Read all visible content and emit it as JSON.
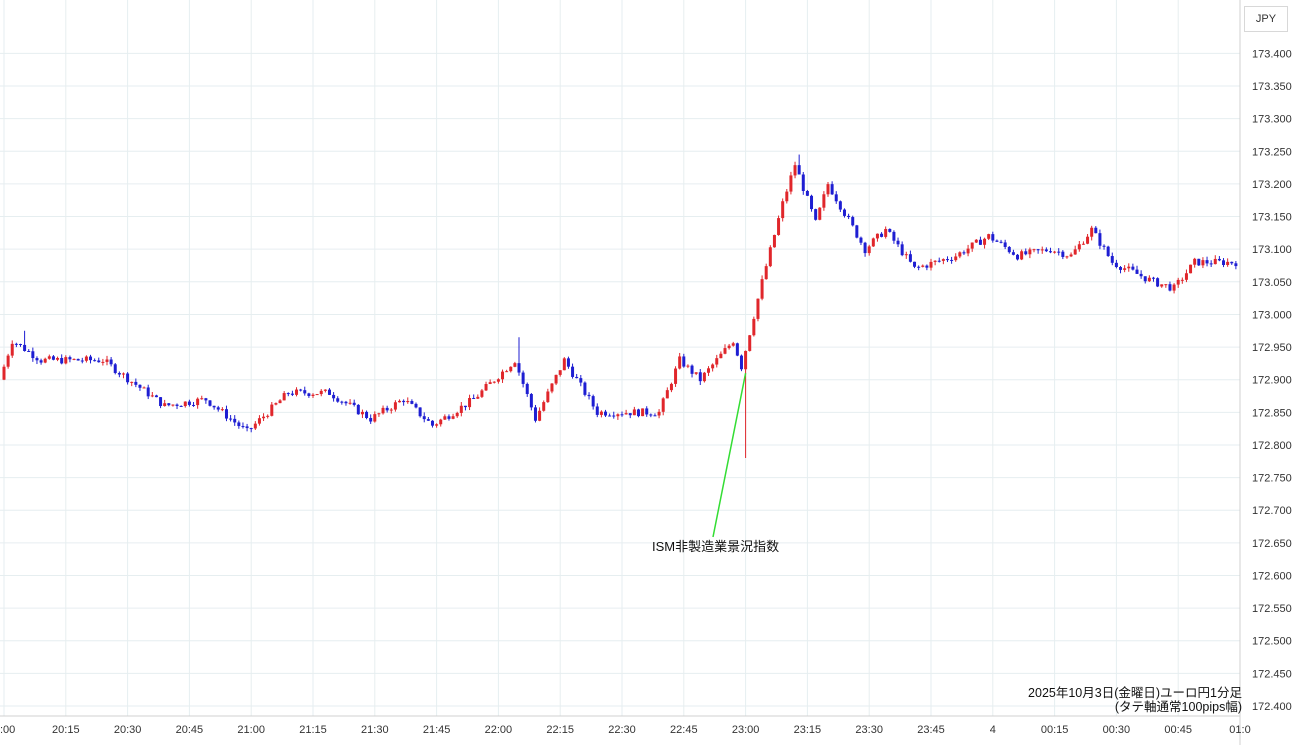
{
  "currency_label": "JPY",
  "caption": {
    "line1": "2025年10月3日(金曜日)ユーロ円1分足",
    "line2": "(タテ軸通常100pips幅)"
  },
  "colors": {
    "up": "#e0262b",
    "down": "#1e1ed2",
    "annotation_line": "#33dd33",
    "grid": "#e6eef0"
  },
  "chart_data": {
    "type": "candlestick",
    "interval": "1 minute",
    "y_axis": {
      "position": "right",
      "range": [
        172.4,
        173.45
      ],
      "ticks": [
        172.4,
        172.45,
        172.5,
        172.55,
        172.6,
        172.65,
        172.7,
        172.75,
        172.8,
        172.85,
        172.9,
        172.95,
        173.0,
        173.05,
        173.1,
        173.15,
        173.2,
        173.25,
        173.3,
        173.35,
        173.4
      ],
      "tick_labels": [
        "172.400",
        "172.450",
        "172.500",
        "172.550",
        "172.600",
        "172.650",
        "172.700",
        "172.750",
        "172.800",
        "172.850",
        "172.900",
        "172.950",
        "173.000",
        "173.050",
        "173.100",
        "173.150",
        "173.200",
        "173.250",
        "173.300",
        "173.350",
        "173.400"
      ]
    },
    "x_axis": {
      "tick_labels": [
        ":00",
        "20:15",
        "20:30",
        "20:45",
        "21:00",
        "21:15",
        "21:30",
        "21:45",
        "22:00",
        "22:15",
        "22:30",
        "22:45",
        "23:00",
        "23:15",
        "23:30",
        "23:45",
        "4",
        "00:15",
        "00:30",
        "00:45",
        "01:0"
      ]
    },
    "grid": true,
    "annotations": [
      {
        "text": "ISM非製造業景況指数",
        "at_time": "23:00",
        "price": 172.91
      }
    ],
    "price_keypoints": [
      {
        "t": "20:00",
        "price": 172.9
      },
      {
        "t": "20:03",
        "price": 172.96
      },
      {
        "t": "20:10",
        "price": 172.93
      },
      {
        "t": "20:25",
        "price": 172.93
      },
      {
        "t": "20:40",
        "price": 172.86
      },
      {
        "t": "20:50",
        "price": 172.87
      },
      {
        "t": "21:00",
        "price": 172.82
      },
      {
        "t": "21:10",
        "price": 172.88
      },
      {
        "t": "21:20",
        "price": 172.88
      },
      {
        "t": "21:30",
        "price": 172.84
      },
      {
        "t": "21:38",
        "price": 172.87
      },
      {
        "t": "21:45",
        "price": 172.83
      },
      {
        "t": "21:55",
        "price": 172.87
      },
      {
        "t": "22:05",
        "price": 172.93
      },
      {
        "t": "22:10",
        "price": 172.84
      },
      {
        "t": "22:17",
        "price": 172.93
      },
      {
        "t": "22:25",
        "price": 172.85
      },
      {
        "t": "22:40",
        "price": 172.85
      },
      {
        "t": "22:45",
        "price": 172.93
      },
      {
        "t": "22:50",
        "price": 172.9
      },
      {
        "t": "22:58",
        "price": 172.96
      },
      {
        "t": "23:00",
        "price": 172.92
      },
      {
        "t": "23:05",
        "price": 173.05
      },
      {
        "t": "23:10",
        "price": 173.17
      },
      {
        "t": "23:13",
        "price": 173.23
      },
      {
        "t": "23:18",
        "price": 173.14
      },
      {
        "t": "23:21",
        "price": 173.2
      },
      {
        "t": "23:30",
        "price": 173.1
      },
      {
        "t": "23:35",
        "price": 173.13
      },
      {
        "t": "23:42",
        "price": 173.07
      },
      {
        "t": "23:52",
        "price": 173.09
      },
      {
        "t": "00:00",
        "price": 173.12
      },
      {
        "t": "00:07",
        "price": 173.09
      },
      {
        "t": "00:15",
        "price": 173.1
      },
      {
        "t": "00:20",
        "price": 173.09
      },
      {
        "t": "00:25",
        "price": 173.13
      },
      {
        "t": "00:30",
        "price": 173.08
      },
      {
        "t": "00:40",
        "price": 173.05
      },
      {
        "t": "00:45",
        "price": 173.04
      },
      {
        "t": "00:50",
        "price": 173.08
      },
      {
        "t": "00:59",
        "price": 173.08
      }
    ]
  }
}
